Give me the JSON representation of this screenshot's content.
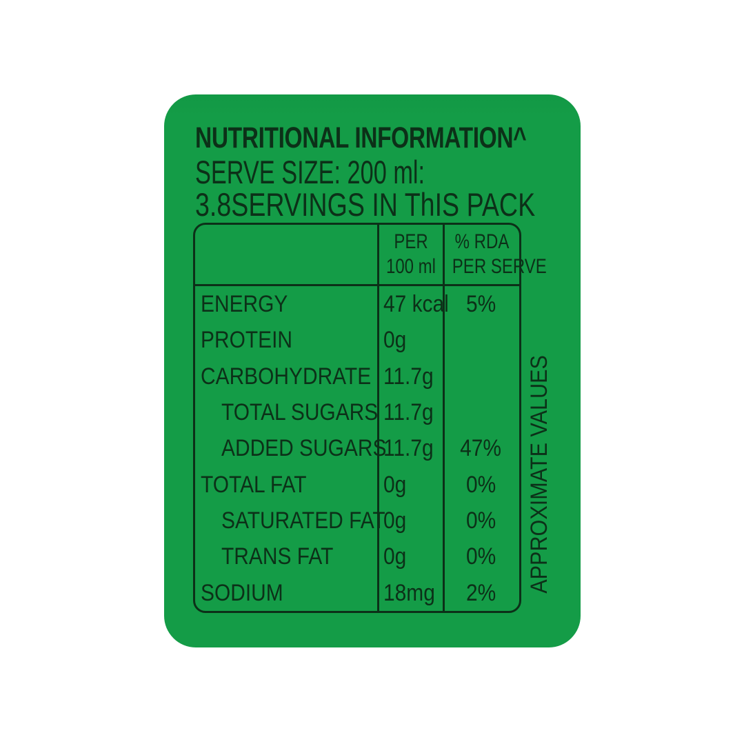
{
  "colors": {
    "background": "#ffffff",
    "label_green": "#149c47",
    "ink": "#0c3018"
  },
  "header": {
    "title": "NUTRITIONAL INFORMATION^",
    "serve_size": "SERVE SIZE: 200 ml:",
    "servings": "3.8SERVINGS IN ThIS PACK"
  },
  "table": {
    "col_headers": {
      "per_line1": "PER",
      "per_line2": "100 ml",
      "rda_line1": "% RDA",
      "rda_line2": "PER SERVE"
    },
    "rows": [
      {
        "nutrient": "ENERGY",
        "per_100ml": "47 kcal",
        "rda": "5%",
        "indent": false
      },
      {
        "nutrient": "PROTEIN",
        "per_100ml": "0g",
        "rda": "",
        "indent": false
      },
      {
        "nutrient": "CARBOHYDRATE",
        "per_100ml": "11.7g",
        "rda": "",
        "indent": false
      },
      {
        "nutrient": "TOTAL SUGARS",
        "per_100ml": "11.7g",
        "rda": "",
        "indent": true
      },
      {
        "nutrient": "ADDED SUGARS",
        "per_100ml": "11.7g",
        "rda": "47%",
        "indent": true
      },
      {
        "nutrient": "TOTAL FAT",
        "per_100ml": "0g",
        "rda": "0%",
        "indent": false
      },
      {
        "nutrient": "SATURATED FAT",
        "per_100ml": "0g",
        "rda": "0%",
        "indent": true
      },
      {
        "nutrient": "TRANS FAT",
        "per_100ml": "0g",
        "rda": "0%",
        "indent": true
      },
      {
        "nutrient": "SODIUM",
        "per_100ml": "18mg",
        "rda": "2%",
        "indent": false
      }
    ]
  },
  "side_note": "APPROXIMATE VALUES"
}
